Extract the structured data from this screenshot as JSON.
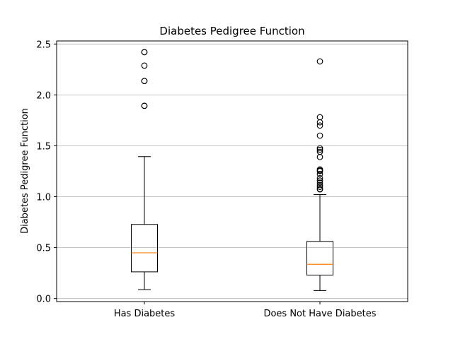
{
  "chart_data": {
    "type": "boxplot",
    "title": "Diabetes Pedigree Function",
    "xlabel": "",
    "ylabel": "Diabetes Pedigree Function",
    "ylim": [
      -0.03,
      2.53
    ],
    "yticks": [
      0.0,
      0.5,
      1.0,
      1.5,
      2.0,
      2.5
    ],
    "ytick_labels": [
      "0.0",
      "0.5",
      "1.0",
      "1.5",
      "2.0",
      "2.5"
    ],
    "grid": "y",
    "categories": [
      "Has Diabetes",
      "Does Not Have Diabetes"
    ],
    "boxes": [
      {
        "category": "Has Diabetes",
        "whisker_low": 0.088,
        "q1": 0.262,
        "median": 0.449,
        "q3": 0.728,
        "whisker_high": 1.394,
        "outliers": [
          1.893,
          1.893,
          2.137,
          2.137,
          2.288,
          2.42,
          2.42
        ]
      },
      {
        "category": "Does Not Have Diabetes",
        "whisker_low": 0.078,
        "q1": 0.23,
        "median": 0.336,
        "q3": 0.561,
        "whisker_high": 1.021,
        "outliers": [
          1.072,
          1.076,
          1.096,
          1.114,
          1.138,
          1.159,
          1.182,
          1.222,
          1.251,
          1.258,
          1.268,
          1.39,
          1.441,
          1.461,
          1.476,
          1.6,
          1.699,
          1.731,
          1.781,
          2.329
        ]
      }
    ],
    "colors": {
      "box": "#000000",
      "median": "#ff7f0e",
      "grid": "#b0b0b0"
    }
  }
}
